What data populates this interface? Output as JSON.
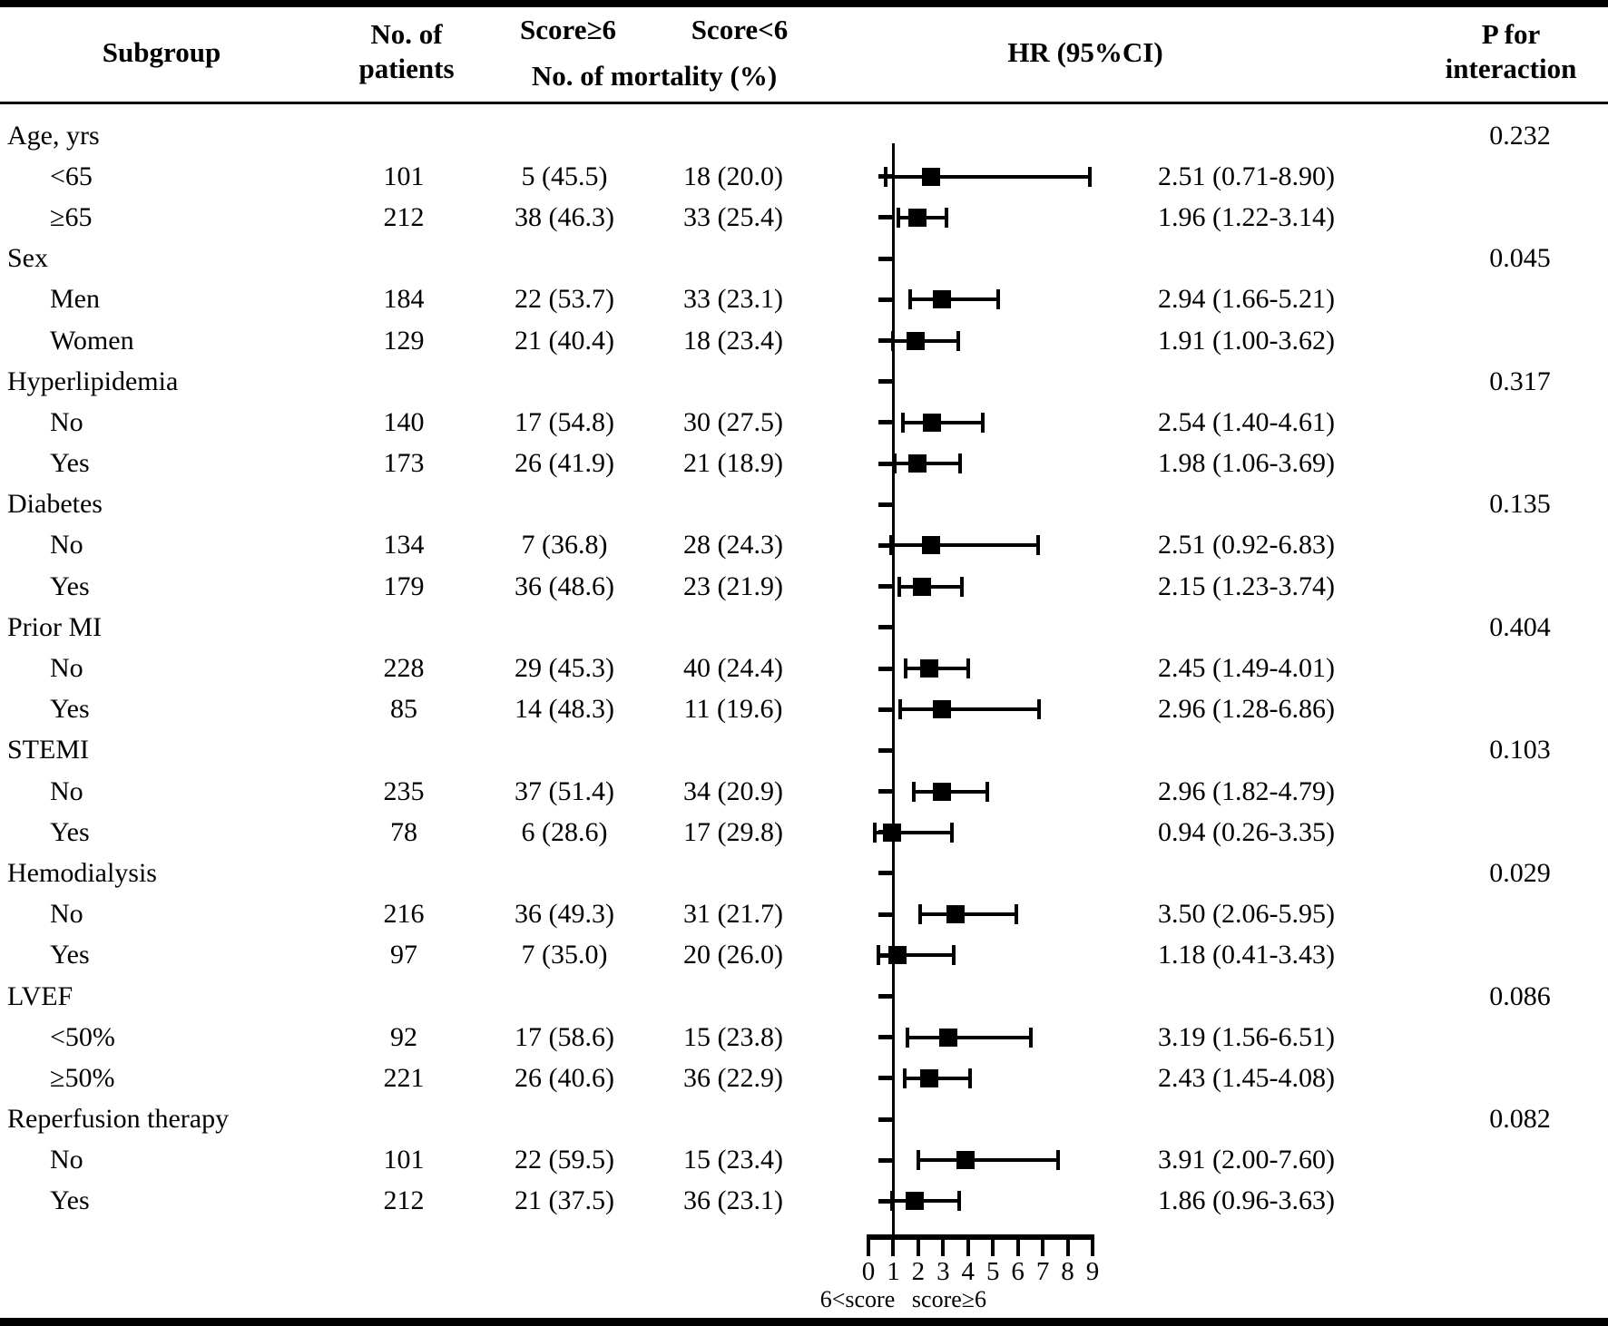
{
  "header": {
    "col_subgroup": "Subgroup",
    "col_patients_line1": "No. of",
    "col_patients_line2": "patients",
    "col_score_ge6": "Score≥6",
    "col_score_lt6": "Score<6",
    "col_mortality": "No. of mortality (%)",
    "col_hr": "HR (95%CI)",
    "col_p_line1": "P for",
    "col_p_line2": "interaction"
  },
  "axis": {
    "min": 0,
    "max": 9,
    "reference_value": 1,
    "ticks": [
      "0",
      "1",
      "2",
      "3",
      "4",
      "5",
      "6",
      "7",
      "8",
      "9"
    ],
    "label_left": "6<score",
    "label_right": "score≥6"
  },
  "rows": [
    {
      "kind": "group",
      "label": "Age, yrs",
      "p": "0.232"
    },
    {
      "kind": "item",
      "label": "<65",
      "n": "101",
      "ge6": "5 (45.5)",
      "lt6": "18 (20.0)",
      "hr": 2.51,
      "lo": 0.71,
      "hi": 8.9,
      "hr_text": "2.51 (0.71-8.90)"
    },
    {
      "kind": "item",
      "label": "≥65",
      "n": "212",
      "ge6": "38 (46.3)",
      "lt6": "33 (25.4)",
      "hr": 1.96,
      "lo": 1.22,
      "hi": 3.14,
      "hr_text": "1.96 (1.22-3.14)"
    },
    {
      "kind": "group",
      "label": "Sex",
      "p": "0.045"
    },
    {
      "kind": "item",
      "label": "Men",
      "n": "184",
      "ge6": "22 (53.7)",
      "lt6": "33 (23.1)",
      "hr": 2.94,
      "lo": 1.66,
      "hi": 5.21,
      "hr_text": "2.94 (1.66-5.21)"
    },
    {
      "kind": "item",
      "label": "Women",
      "n": "129",
      "ge6": "21 (40.4)",
      "lt6": "18 (23.4)",
      "hr": 1.91,
      "lo": 1.0,
      "hi": 3.62,
      "hr_text": "1.91 (1.00-3.62)"
    },
    {
      "kind": "group",
      "label": "Hyperlipidemia",
      "p": "0.317"
    },
    {
      "kind": "item",
      "label": "No",
      "n": "140",
      "ge6": "17 (54.8)",
      "lt6": "30 (27.5)",
      "hr": 2.54,
      "lo": 1.4,
      "hi": 4.61,
      "hr_text": "2.54 (1.40-4.61)"
    },
    {
      "kind": "item",
      "label": "Yes",
      "n": "173",
      "ge6": "26 (41.9)",
      "lt6": "21 (18.9)",
      "hr": 1.98,
      "lo": 1.06,
      "hi": 3.69,
      "hr_text": "1.98 (1.06-3.69)"
    },
    {
      "kind": "group",
      "label": "Diabetes",
      "p": "0.135"
    },
    {
      "kind": "item",
      "label": "No",
      "n": "134",
      "ge6": "7 (36.8)",
      "lt6": "28 (24.3)",
      "hr": 2.51,
      "lo": 0.92,
      "hi": 6.83,
      "hr_text": "2.51 (0.92-6.83)"
    },
    {
      "kind": "item",
      "label": "Yes",
      "n": "179",
      "ge6": "36 (48.6)",
      "lt6": "23 (21.9)",
      "hr": 2.15,
      "lo": 1.23,
      "hi": 3.74,
      "hr_text": "2.15 (1.23-3.74)"
    },
    {
      "kind": "group",
      "label": "Prior MI",
      "p": "0.404"
    },
    {
      "kind": "item",
      "label": "No",
      "n": "228",
      "ge6": "29 (45.3)",
      "lt6": "40 (24.4)",
      "hr": 2.45,
      "lo": 1.49,
      "hi": 4.01,
      "hr_text": "2.45 (1.49-4.01)"
    },
    {
      "kind": "item",
      "label": "Yes",
      "n": "85",
      "ge6": "14 (48.3)",
      "lt6": "11 (19.6)",
      "hr": 2.96,
      "lo": 1.28,
      "hi": 6.86,
      "hr_text": "2.96 (1.28-6.86)"
    },
    {
      "kind": "group",
      "label": "STEMI",
      "p": "0.103"
    },
    {
      "kind": "item",
      "label": "No",
      "n": "235",
      "ge6": "37 (51.4)",
      "lt6": "34 (20.9)",
      "hr": 2.96,
      "lo": 1.82,
      "hi": 4.79,
      "hr_text": "2.96 (1.82-4.79)"
    },
    {
      "kind": "item",
      "label": "Yes",
      "n": "78",
      "ge6": "6 (28.6)",
      "lt6": "17 (29.8)",
      "hr": 0.94,
      "lo": 0.26,
      "hi": 3.35,
      "hr_text": "0.94 (0.26-3.35)"
    },
    {
      "kind": "group",
      "label": "Hemodialysis",
      "p": "0.029"
    },
    {
      "kind": "item",
      "label": "No",
      "n": "216",
      "ge6": "36 (49.3)",
      "lt6": "31 (21.7)",
      "hr": 3.5,
      "lo": 2.06,
      "hi": 5.95,
      "hr_text": "3.50 (2.06-5.95)"
    },
    {
      "kind": "item",
      "label": "Yes",
      "n": "97",
      "ge6": "7 (35.0)",
      "lt6": "20 (26.0)",
      "hr": 1.18,
      "lo": 0.41,
      "hi": 3.43,
      "hr_text": "1.18 (0.41-3.43)"
    },
    {
      "kind": "group",
      "label": "LVEF",
      "p": "0.086"
    },
    {
      "kind": "item",
      "label": "<50%",
      "n": "92",
      "ge6": "17 (58.6)",
      "lt6": "15 (23.8)",
      "hr": 3.19,
      "lo": 1.56,
      "hi": 6.51,
      "hr_text": "3.19 (1.56-6.51)"
    },
    {
      "kind": "item",
      "label": "≥50%",
      "n": "221",
      "ge6": "26 (40.6)",
      "lt6": "36 (22.9)",
      "hr": 2.43,
      "lo": 1.45,
      "hi": 4.08,
      "hr_text": "2.43 (1.45-4.08)"
    },
    {
      "kind": "group",
      "label": "Reperfusion therapy",
      "p": "0.082"
    },
    {
      "kind": "item",
      "label": "No",
      "n": "101",
      "ge6": "22 (59.5)",
      "lt6": "15 (23.4)",
      "hr": 3.91,
      "lo": 2.0,
      "hi": 7.6,
      "hr_text": "3.91 (2.00-7.60)"
    },
    {
      "kind": "item",
      "label": "Yes",
      "n": "212",
      "ge6": "21 (37.5)",
      "lt6": "36 (23.1)",
      "hr": 1.86,
      "lo": 0.96,
      "hi": 3.63,
      "hr_text": "1.86 (0.96-3.63)"
    }
  ],
  "chart_data": {
    "type": "scatter",
    "subtype": "forest-plot",
    "title": "",
    "xlabel": "HR (95%CI)",
    "xlim": [
      0,
      9
    ],
    "x_ticks": [
      0,
      1,
      2,
      3,
      4,
      5,
      6,
      7,
      8,
      9
    ],
    "reference_line": 1,
    "direction_label_left": "6<score",
    "direction_label_right": "score≥6",
    "groups": [
      {
        "name": "Age, yrs",
        "p_interaction": "0.232",
        "items": [
          {
            "subgroup": "<65",
            "n": 101,
            "mortality_score_ge6": "5 (45.5)",
            "mortality_score_lt6": "18 (20.0)",
            "hr": 2.51,
            "ci": [
              0.71,
              8.9
            ]
          },
          {
            "subgroup": "≥65",
            "n": 212,
            "mortality_score_ge6": "38 (46.3)",
            "mortality_score_lt6": "33 (25.4)",
            "hr": 1.96,
            "ci": [
              1.22,
              3.14
            ]
          }
        ]
      },
      {
        "name": "Sex",
        "p_interaction": "0.045",
        "items": [
          {
            "subgroup": "Men",
            "n": 184,
            "mortality_score_ge6": "22 (53.7)",
            "mortality_score_lt6": "33 (23.1)",
            "hr": 2.94,
            "ci": [
              1.66,
              5.21
            ]
          },
          {
            "subgroup": "Women",
            "n": 129,
            "mortality_score_ge6": "21 (40.4)",
            "mortality_score_lt6": "18 (23.4)",
            "hr": 1.91,
            "ci": [
              1.0,
              3.62
            ]
          }
        ]
      },
      {
        "name": "Hyperlipidemia",
        "p_interaction": "0.317",
        "items": [
          {
            "subgroup": "No",
            "n": 140,
            "mortality_score_ge6": "17 (54.8)",
            "mortality_score_lt6": "30 (27.5)",
            "hr": 2.54,
            "ci": [
              1.4,
              4.61
            ]
          },
          {
            "subgroup": "Yes",
            "n": 173,
            "mortality_score_ge6": "26 (41.9)",
            "mortality_score_lt6": "21 (18.9)",
            "hr": 1.98,
            "ci": [
              1.06,
              3.69
            ]
          }
        ]
      },
      {
        "name": "Diabetes",
        "p_interaction": "0.135",
        "items": [
          {
            "subgroup": "No",
            "n": 134,
            "mortality_score_ge6": "7 (36.8)",
            "mortality_score_lt6": "28 (24.3)",
            "hr": 2.51,
            "ci": [
              0.92,
              6.83
            ]
          },
          {
            "subgroup": "Yes",
            "n": 179,
            "mortality_score_ge6": "36 (48.6)",
            "mortality_score_lt6": "23 (21.9)",
            "hr": 2.15,
            "ci": [
              1.23,
              3.74
            ]
          }
        ]
      },
      {
        "name": "Prior MI",
        "p_interaction": "0.404",
        "items": [
          {
            "subgroup": "No",
            "n": 228,
            "mortality_score_ge6": "29 (45.3)",
            "mortality_score_lt6": "40 (24.4)",
            "hr": 2.45,
            "ci": [
              1.49,
              4.01
            ]
          },
          {
            "subgroup": "Yes",
            "n": 85,
            "mortality_score_ge6": "14 (48.3)",
            "mortality_score_lt6": "11 (19.6)",
            "hr": 2.96,
            "ci": [
              1.28,
              6.86
            ]
          }
        ]
      },
      {
        "name": "STEMI",
        "p_interaction": "0.103",
        "items": [
          {
            "subgroup": "No",
            "n": 235,
            "mortality_score_ge6": "37 (51.4)",
            "mortality_score_lt6": "34 (20.9)",
            "hr": 2.96,
            "ci": [
              1.82,
              4.79
            ]
          },
          {
            "subgroup": "Yes",
            "n": 78,
            "mortality_score_ge6": "6 (28.6)",
            "mortality_score_lt6": "17 (29.8)",
            "hr": 0.94,
            "ci": [
              0.26,
              3.35
            ]
          }
        ]
      },
      {
        "name": "Hemodialysis",
        "p_interaction": "0.029",
        "items": [
          {
            "subgroup": "No",
            "n": 216,
            "mortality_score_ge6": "36 (49.3)",
            "mortality_score_lt6": "31 (21.7)",
            "hr": 3.5,
            "ci": [
              2.06,
              5.95
            ]
          },
          {
            "subgroup": "Yes",
            "n": 97,
            "mortality_score_ge6": "7 (35.0)",
            "mortality_score_lt6": "20 (26.0)",
            "hr": 1.18,
            "ci": [
              0.41,
              3.43
            ]
          }
        ]
      },
      {
        "name": "LVEF",
        "p_interaction": "0.086",
        "items": [
          {
            "subgroup": "<50%",
            "n": 92,
            "mortality_score_ge6": "17 (58.6)",
            "mortality_score_lt6": "15 (23.8)",
            "hr": 3.19,
            "ci": [
              1.56,
              6.51
            ]
          },
          {
            "subgroup": "≥50%",
            "n": 221,
            "mortality_score_ge6": "26 (40.6)",
            "mortality_score_lt6": "36 (22.9)",
            "hr": 2.43,
            "ci": [
              1.45,
              4.08
            ]
          }
        ]
      },
      {
        "name": "Reperfusion therapy",
        "p_interaction": "0.082",
        "items": [
          {
            "subgroup": "No",
            "n": 101,
            "mortality_score_ge6": "22 (59.5)",
            "mortality_score_lt6": "15 (23.4)",
            "hr": 3.91,
            "ci": [
              2.0,
              7.6
            ]
          },
          {
            "subgroup": "Yes",
            "n": 212,
            "mortality_score_ge6": "21 (37.5)",
            "mortality_score_lt6": "36 (23.1)",
            "hr": 1.86,
            "ci": [
              0.96,
              3.63
            ]
          }
        ]
      }
    ]
  }
}
